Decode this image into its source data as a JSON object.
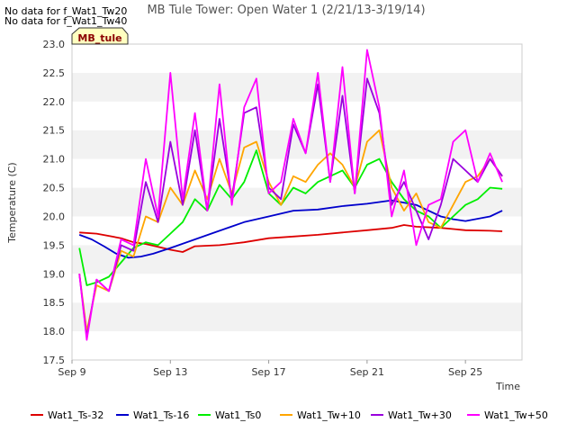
{
  "notes": [
    "No data for f_Wat1_Tw20",
    "No data for f_Wat1_Tw40"
  ],
  "badge": "MB_tule",
  "chart_data": {
    "type": "line",
    "title": "MB Tule Tower: Open Water 1 (2/21/13-3/19/14)",
    "xlabel": "Time",
    "ylabel": "Temperature (C)",
    "ylim": [
      17.5,
      23.0
    ],
    "xlim": [
      0,
      18.3
    ],
    "yticks": [
      17.5,
      18.0,
      18.5,
      19.0,
      19.5,
      20.0,
      20.5,
      21.0,
      21.5,
      22.0,
      22.5,
      23.0
    ],
    "ytick_labels": [
      "17.5",
      "18.0",
      "18.5",
      "19.0",
      "19.5",
      "20.0",
      "20.5",
      "21.0",
      "21.5",
      "22.0",
      "22.5",
      "23.0"
    ],
    "xticks": [
      0,
      4,
      8,
      12,
      16
    ],
    "xtick_labels": [
      "Sep 9",
      "Sep 13",
      "Sep 17",
      "Sep 21",
      "Sep 25"
    ],
    "grid": "horizontal bands",
    "legend_position": "bottom",
    "series": [
      {
        "name": "Wat1_Ts-32",
        "color": "#dd0000",
        "x": [
          0.3,
          1.0,
          2.0,
          2.5,
          3.0,
          3.5,
          4.0,
          4.5,
          5.0,
          6.0,
          7.0,
          8.0,
          9.0,
          10.0,
          11.0,
          12.0,
          13.0,
          13.5,
          14.0,
          15.0,
          16.0,
          17.0,
          17.5
        ],
        "y": [
          19.72,
          19.7,
          19.62,
          19.55,
          19.52,
          19.47,
          19.42,
          19.38,
          19.48,
          19.5,
          19.55,
          19.62,
          19.65,
          19.68,
          19.72,
          19.76,
          19.8,
          19.85,
          19.82,
          19.8,
          19.76,
          19.75,
          19.74
        ]
      },
      {
        "name": "Wat1_Ts-16",
        "color": "#0000cc",
        "x": [
          0.3,
          0.8,
          1.3,
          1.8,
          2.3,
          2.8,
          3.3,
          4.0,
          5.0,
          6.0,
          7.0,
          8.0,
          9.0,
          10.0,
          11.0,
          12.0,
          13.0,
          14.0,
          14.5,
          15.0,
          15.5,
          16.0,
          17.0,
          17.5
        ],
        "y": [
          19.68,
          19.6,
          19.48,
          19.35,
          19.28,
          19.3,
          19.35,
          19.45,
          19.6,
          19.75,
          19.9,
          20.0,
          20.1,
          20.12,
          20.18,
          20.22,
          20.28,
          20.2,
          20.1,
          20.0,
          19.95,
          19.92,
          20.0,
          20.1
        ]
      },
      {
        "name": "Wat1_Ts0",
        "color": "#00ee00",
        "x": [
          0.3,
          0.6,
          1.0,
          1.5,
          2.0,
          2.5,
          3.0,
          3.5,
          4.0,
          4.5,
          5.0,
          5.5,
          6.0,
          6.5,
          7.0,
          7.5,
          8.0,
          8.5,
          9.0,
          9.5,
          10.0,
          10.5,
          11.0,
          11.5,
          12.0,
          12.5,
          13.0,
          13.5,
          14.0,
          14.5,
          15.0,
          15.5,
          16.0,
          16.5,
          17.0,
          17.5
        ],
        "y": [
          19.45,
          18.8,
          18.85,
          18.95,
          19.2,
          19.45,
          19.55,
          19.5,
          19.7,
          19.9,
          20.3,
          20.1,
          20.55,
          20.3,
          20.6,
          21.15,
          20.4,
          20.2,
          20.5,
          20.4,
          20.6,
          20.7,
          20.8,
          20.5,
          20.9,
          21.0,
          20.6,
          20.3,
          20.1,
          20.0,
          19.8,
          20.0,
          20.2,
          20.3,
          20.5,
          20.48
        ]
      },
      {
        "name": "Wat1_Tw+10",
        "color": "#ffa500",
        "x": [
          0.3,
          0.6,
          1.0,
          1.5,
          2.0,
          2.5,
          3.0,
          3.5,
          4.0,
          4.5,
          5.0,
          5.5,
          6.0,
          6.5,
          7.0,
          7.5,
          8.0,
          8.5,
          9.0,
          9.5,
          10.0,
          10.5,
          11.0,
          11.5,
          12.0,
          12.5,
          13.0,
          13.5,
          14.0,
          14.5,
          15.0,
          15.5,
          16.0,
          16.5,
          17.0,
          17.5
        ],
        "y": [
          19.0,
          18.0,
          18.8,
          18.7,
          19.4,
          19.3,
          20.0,
          19.9,
          20.5,
          20.2,
          20.8,
          20.3,
          21.0,
          20.4,
          21.2,
          21.3,
          20.6,
          20.2,
          20.7,
          20.6,
          20.9,
          21.1,
          20.9,
          20.5,
          21.3,
          21.5,
          20.5,
          20.1,
          20.4,
          19.9,
          19.8,
          20.2,
          20.6,
          20.7,
          21.0,
          20.7
        ]
      },
      {
        "name": "Wat1_Tw+30",
        "color": "#9900dd",
        "x": [
          0.3,
          0.6,
          1.0,
          1.5,
          2.0,
          2.5,
          3.0,
          3.5,
          4.0,
          4.5,
          5.0,
          5.5,
          6.0,
          6.5,
          7.0,
          7.5,
          8.0,
          8.5,
          9.0,
          9.5,
          10.0,
          10.5,
          11.0,
          11.5,
          12.0,
          12.5,
          13.0,
          13.5,
          14.0,
          14.5,
          15.0,
          15.5,
          16.0,
          16.5,
          17.0,
          17.5
        ],
        "y": [
          19.0,
          17.9,
          18.9,
          18.7,
          19.5,
          19.4,
          20.6,
          19.9,
          21.3,
          20.2,
          21.5,
          20.1,
          21.7,
          20.3,
          21.8,
          21.9,
          20.5,
          20.3,
          21.6,
          21.1,
          22.3,
          20.6,
          22.1,
          20.4,
          22.4,
          21.8,
          20.2,
          20.6,
          20.1,
          19.6,
          20.2,
          21.0,
          20.8,
          20.6,
          21.0,
          20.7
        ]
      },
      {
        "name": "Wat1_Tw+50",
        "color": "#ff00ff",
        "x": [
          0.3,
          0.6,
          1.0,
          1.5,
          2.0,
          2.5,
          3.0,
          3.5,
          4.0,
          4.5,
          5.0,
          5.5,
          6.0,
          6.5,
          7.0,
          7.5,
          8.0,
          8.5,
          9.0,
          9.5,
          10.0,
          10.5,
          11.0,
          11.5,
          12.0,
          12.5,
          13.0,
          13.5,
          14.0,
          14.5,
          15.0,
          15.5,
          16.0,
          16.5,
          17.0,
          17.5
        ],
        "y": [
          19.0,
          17.85,
          18.9,
          18.7,
          19.6,
          19.5,
          21.0,
          20.0,
          22.5,
          20.3,
          21.8,
          20.1,
          22.3,
          20.2,
          21.9,
          22.4,
          20.4,
          20.6,
          21.7,
          21.1,
          22.5,
          20.6,
          22.6,
          20.4,
          22.9,
          21.9,
          20.0,
          20.8,
          19.5,
          20.2,
          20.3,
          21.3,
          21.5,
          20.6,
          21.1,
          20.6
        ]
      }
    ]
  }
}
